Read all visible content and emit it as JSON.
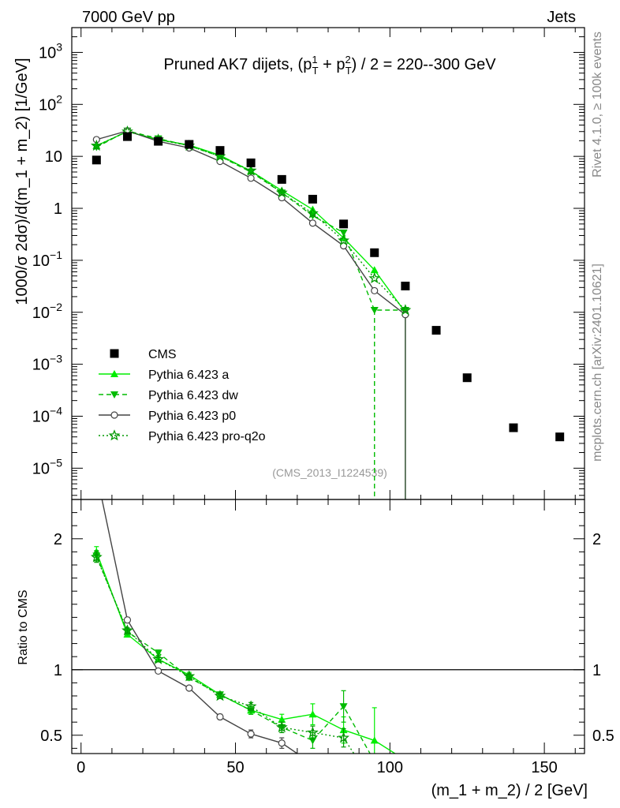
{
  "header": {
    "left": "7000 GeV pp",
    "right": "Jets"
  },
  "side_labels": {
    "rivet": "Rivet 4.1.0, ≥ 100k events",
    "mcplots": "mcplots.cern.ch [arXiv:2401.10621]"
  },
  "chart_data": [
    {
      "type": "scatter",
      "panel": "main",
      "title": "Pruned AK7 dijets, (p_T^1 + p_T^2) / 2 = 220--300 GeV",
      "ylabel": "1000/σ  2dσ)/d(m_1 + m_2) [1/GeV]",
      "xlabel": "(m_1 + m_2) / 2 [GeV]",
      "yscale": "log",
      "ylim": [
        2.5e-06,
        3000
      ],
      "xlim": [
        -3,
        163
      ],
      "annotation": "(CMS_2013_I1224539)",
      "legend_position": "bottom-left",
      "yticks": [
        {
          "value": 1e-05,
          "base": "10",
          "exp": "−5"
        },
        {
          "value": 0.0001,
          "base": "10",
          "exp": "−4"
        },
        {
          "value": 0.001,
          "base": "10",
          "exp": "−3"
        },
        {
          "value": 0.01,
          "base": "10",
          "exp": "−2"
        },
        {
          "value": 0.1,
          "base": "10",
          "exp": "−1"
        },
        {
          "value": 1,
          "base": "1",
          "exp": ""
        },
        {
          "value": 10,
          "base": "10",
          "exp": ""
        },
        {
          "value": 100,
          "base": "10",
          "exp": "2"
        },
        {
          "value": 1000,
          "base": "10",
          "exp": "3"
        }
      ],
      "series": [
        {
          "name": "CMS",
          "style": "data",
          "color": "#000000",
          "marker": "square",
          "x": [
            5,
            15,
            25,
            35,
            45,
            55,
            65,
            75,
            85,
            95,
            105,
            115,
            125,
            140,
            155
          ],
          "y": [
            8.5,
            24,
            19.5,
            17,
            13,
            7.5,
            3.6,
            1.5,
            0.5,
            0.14,
            0.032,
            0.0045,
            0.00055,
            6e-05,
            4e-05
          ]
        },
        {
          "name": "Pythia 6.423 a",
          "style": "solid",
          "color": "#00ee00",
          "marker": "triangle-up",
          "x": [
            5,
            15,
            25,
            35,
            45,
            55,
            65,
            75,
            85,
            95,
            105
          ],
          "y": [
            16,
            30,
            21,
            16.5,
            10.5,
            5.2,
            2.2,
            0.95,
            0.27,
            0.065,
            0.01
          ],
          "ends_at_zero_x": 105
        },
        {
          "name": "Pythia 6.423 dw",
          "style": "dashed",
          "color": "#00bb00",
          "marker": "triangle-down",
          "x": [
            5,
            15,
            25,
            35,
            45,
            55,
            65,
            75,
            85,
            95,
            105
          ],
          "y": [
            15,
            31,
            22,
            16,
            10,
            5,
            2.0,
            0.72,
            0.34,
            0.011,
            0.011
          ],
          "drop_at_x": 95
        },
        {
          "name": "Pythia 6.423 p0",
          "style": "solid",
          "color": "#444444",
          "marker": "circle",
          "x": [
            5,
            15,
            25,
            35,
            45,
            55,
            65,
            75,
            85,
            95,
            105
          ],
          "y": [
            21,
            31,
            19.5,
            14.5,
            8,
            3.8,
            1.6,
            0.52,
            0.19,
            0.026,
            0.009
          ],
          "ends_at_zero_x": 105
        },
        {
          "name": "Pythia 6.423 pro-q2o",
          "style": "dotted",
          "color": "#009900",
          "marker": "star",
          "x": [
            5,
            15,
            25,
            35,
            45,
            55,
            65,
            75,
            85,
            95,
            105
          ],
          "y": [
            16,
            30,
            21,
            16,
            10,
            5.3,
            2.0,
            0.8,
            0.24,
            0.045,
            0.011
          ]
        }
      ]
    },
    {
      "type": "line",
      "panel": "ratio",
      "ylabel": "Ratio to CMS",
      "xlabel": "(m_1 + m_2) / 2 [GeV]",
      "ylim": [
        0.36,
        2.3
      ],
      "xlim": [
        -3,
        163
      ],
      "yticks": [
        0.5,
        1,
        2
      ],
      "xticks": [
        0,
        50,
        100,
        150
      ],
      "reference_line": 1,
      "series": [
        {
          "name": "Pythia 6.423 a",
          "style": "solid",
          "color": "#00ee00",
          "marker": "triangle-up",
          "x": [
            5,
            15,
            25,
            35,
            45,
            55,
            65,
            75,
            85,
            95,
            105
          ],
          "y": [
            1.9,
            1.27,
            1.08,
            0.96,
            0.81,
            0.69,
            0.62,
            0.66,
            0.54,
            0.46,
            0.31
          ],
          "err": [
            0.04,
            0.02,
            0.02,
            0.02,
            0.02,
            0.03,
            0.04,
            0.08,
            0.1,
            0.25,
            0.0
          ]
        },
        {
          "name": "Pythia 6.423 dw",
          "style": "dashed",
          "color": "#00bb00",
          "marker": "triangle-down",
          "x": [
            5,
            15,
            25,
            35,
            45,
            55,
            65,
            75,
            85,
            95
          ],
          "y": [
            1.87,
            1.29,
            1.13,
            0.94,
            0.81,
            0.69,
            0.56,
            0.46,
            0.72,
            0.3
          ],
          "err": [
            0.04,
            0.02,
            0.02,
            0.02,
            0.02,
            0.03,
            0.04,
            0.06,
            0.12,
            0.0
          ]
        },
        {
          "name": "Pythia 6.423 p0",
          "style": "solid",
          "color": "#444444",
          "marker": "circle",
          "x": [
            5,
            15,
            25,
            35,
            45,
            55,
            65,
            70
          ],
          "y": [
            2.5,
            1.38,
            0.99,
            0.86,
            0.64,
            0.51,
            0.44,
            0.36
          ],
          "err": [
            0.05,
            0.02,
            0.01,
            0.01,
            0.02,
            0.03,
            0.04,
            0.0
          ],
          "show_marker": [
            true,
            true,
            true,
            true,
            true,
            true,
            true,
            false
          ]
        },
        {
          "name": "Pythia 6.423 pro-q2o",
          "style": "dotted",
          "color": "#009900",
          "marker": "star",
          "x": [
            5,
            15,
            25,
            35,
            45,
            55,
            65,
            75,
            85,
            90
          ],
          "y": [
            1.86,
            1.3,
            1.08,
            0.95,
            0.8,
            0.72,
            0.56,
            0.52,
            0.48,
            0.3
          ],
          "err": [
            0.04,
            0.02,
            0.02,
            0.02,
            0.02,
            0.03,
            0.04,
            0.05,
            0.07,
            0.0
          ],
          "show_marker": [
            true,
            true,
            true,
            true,
            true,
            true,
            true,
            true,
            true,
            false
          ]
        }
      ]
    }
  ]
}
